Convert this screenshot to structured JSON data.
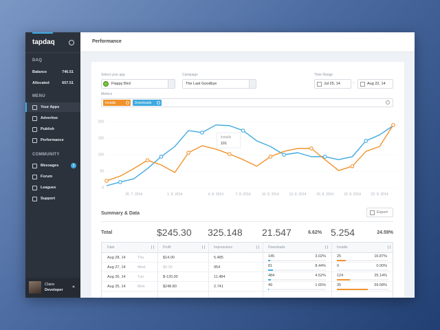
{
  "sidebar": {
    "logo": "tapdaq",
    "daq_title": "DAQ",
    "balance": {
      "label": "Balance",
      "value": "746.51"
    },
    "allocated": {
      "label": "Allocated",
      "value": "657.51"
    },
    "menu_title": "MENU",
    "menu": [
      "Your Apps",
      "Advertise",
      "Publish",
      "Performance"
    ],
    "community_title": "COMMUNITY",
    "community": [
      "Messages",
      "Forum",
      "Leagues",
      "Support"
    ],
    "messages_badge": "2",
    "user": {
      "name": "Claire",
      "role": "Developer"
    }
  },
  "header": {
    "title": "Performance"
  },
  "filters": {
    "app_label": "Select your app",
    "app_value": "Flappy Bird",
    "campaign_label": "Campaign",
    "campaign_value": "The Last Goodbye",
    "time_label": "Time Range",
    "from": "Jul 25, 14",
    "separator": "–",
    "to": "Aug 22, 14",
    "metrics_label": "Metrics",
    "tags": [
      "Installs",
      "Downloads"
    ]
  },
  "chart_data": {
    "type": "line",
    "categories": [
      null,
      null,
      "26. 7. 2014",
      null,
      null,
      "1. 8. 2014",
      null,
      null,
      "4. 8. 2014",
      null,
      "7. 8. 2014",
      null,
      "10. 8. 2014",
      null,
      "13. 8. 2014",
      null,
      "16. 8. 2014",
      null,
      "19. 8. 2014",
      null,
      "22. 8. 2014",
      null
    ],
    "series": [
      {
        "name": "Downloads",
        "color": "#3fa9df",
        "values": [
          6,
          17,
          27,
          58,
          94,
          125,
          173,
          167,
          190,
          188,
          173,
          142,
          125,
          100,
          106,
          94,
          94,
          85,
          94,
          142,
          160,
          188
        ]
      },
      {
        "name": "Installs",
        "color": "#f0922b",
        "values": [
          21,
          35,
          58,
          83,
          69,
          46,
          106,
          127,
          117,
          102,
          85,
          65,
          94,
          110,
          119,
          119,
          85,
          52,
          65,
          110,
          125,
          190
        ]
      }
    ],
    "ylim": [
      0,
      200
    ],
    "yticks": [
      0,
      50,
      100,
      150,
      200
    ],
    "grid": true,
    "tooltip": {
      "label": "Installs",
      "value": "101"
    }
  },
  "summary": {
    "title": "Summary & Data",
    "export": "Export",
    "total_label": "Total",
    "totals": [
      "$245.30",
      "325.148",
      "21.547",
      "6.62%",
      "5.254",
      "24.59%"
    ]
  },
  "table": {
    "header": [
      "Date",
      "Profit",
      "Impressions",
      "Downloads",
      "Installs"
    ],
    "rows": [
      [
        "Aug 28, 14",
        "Thu",
        "$14.00",
        "5.485",
        "145",
        "3.02%",
        "25",
        "16.87%"
      ],
      [
        "Aug 27, 14",
        "Wed",
        "$0.00",
        "954",
        "81",
        "8.44%",
        "0",
        "0.00%"
      ],
      [
        "Aug 26, 14",
        "Tue",
        "$-120.00",
        "11.484",
        "484",
        "4.52%",
        "124",
        "25.14%"
      ],
      [
        "Aug 25, 14",
        "Mon",
        "$248.80",
        "2.741",
        "49",
        "1.65%",
        "35",
        "59.58%"
      ]
    ]
  }
}
